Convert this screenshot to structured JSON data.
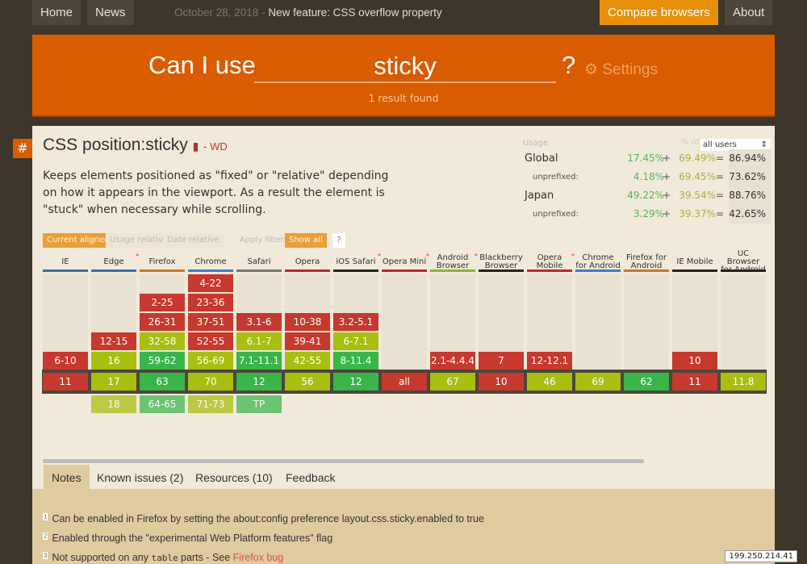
{
  "nav": {
    "home": "Home",
    "news": "News",
    "news_date": "October 28, 2018",
    "news_sep": " - ",
    "news_text": "New feature: CSS overflow property",
    "compare": "Compare browsers",
    "about": "About"
  },
  "search": {
    "prefix": "Can I use",
    "query": "sticky",
    "suffix": "?",
    "settings": "Settings",
    "results": "1 result found"
  },
  "feature": {
    "hash": "#",
    "title": "CSS position:sticky",
    "status": "- WD",
    "description": "Keeps elements positioned as \"fixed\" or \"relative\" depending on how it appears in the viewport. As a result the element is \"stuck\" when necessary while scrolling."
  },
  "usage": {
    "label": "Usage",
    "pct_of": "% of",
    "select": "all users",
    "rows": [
      {
        "name": "Global",
        "a": "17.45%",
        "p": "69.49%",
        "t": "86.94%",
        "sub": false
      },
      {
        "name": "unprefixed:",
        "a": "4.18%",
        "p": "69.45%",
        "t": "73.62%",
        "sub": true
      },
      {
        "name": "Japan",
        "a": "49.22%",
        "p": "39.54%",
        "t": "88.76%",
        "sub": false
      },
      {
        "name": "unprefixed:",
        "a": "3.29%",
        "p": "39.37%",
        "t": "42.65%",
        "sub": true
      }
    ]
  },
  "filters": {
    "current": "Current aligned",
    "usage": "Usage relative",
    "date": "Date relative",
    "apply": "Apply filters",
    "show": "Show all",
    "help": "?"
  },
  "colors": {
    "red": "#c6392e",
    "yellow": "#a8be10",
    "green": "#39b54a",
    "accent": "#d95c00"
  },
  "browsers": [
    {
      "name": "IE",
      "bar": "#3b6ea5",
      "ast": false,
      "past": [
        null,
        null,
        null,
        null,
        [
          "6-10",
          "r"
        ]
      ],
      "cur": [
        "11",
        "r"
      ],
      "fut": null
    },
    {
      "name": "Edge",
      "bar": "#3b6ea5",
      "ast": true,
      "past": [
        null,
        null,
        null,
        [
          "12-15",
          "r"
        ],
        [
          "16",
          "y",
          "6"
        ]
      ],
      "cur": [
        "17",
        "y",
        "6"
      ],
      "fut": [
        "18",
        "y",
        "6"
      ]
    },
    {
      "name": "Firefox",
      "bar": "#c8772a",
      "ast": false,
      "past": [
        null,
        [
          "2-25",
          "r"
        ],
        [
          "26-31",
          "r",
          "1",
          "flag"
        ],
        [
          "32-58",
          "y",
          "3"
        ],
        [
          "59-62",
          "g"
        ]
      ],
      "cur": [
        "63",
        "g"
      ],
      "fut": [
        "64-65",
        "g"
      ]
    },
    {
      "name": "Chrome",
      "bar": "#3b7dc4",
      "ast": false,
      "past": [
        [
          "4-22",
          "r"
        ],
        [
          "23-36",
          "r",
          "2",
          "flag"
        ],
        [
          "37-51",
          "r"
        ],
        [
          "52-55",
          "r",
          "2",
          "flag"
        ],
        [
          "56-69",
          "y",
          "4"
        ]
      ],
      "cur": [
        "70",
        "y",
        "4"
      ],
      "fut": [
        "71-73",
        "y",
        "4"
      ]
    },
    {
      "name": "Safari",
      "bar": "#777",
      "ast": false,
      "past": [
        null,
        null,
        [
          "3.1-6",
          "r"
        ],
        [
          "6.1-7",
          "y",
          "5",
          "minus"
        ],
        [
          "7.1-11.1",
          "g",
          null,
          "minus"
        ]
      ],
      "cur": [
        "12",
        "g",
        null,
        "minus"
      ],
      "fut": [
        "TP",
        "g",
        null,
        "minus"
      ]
    },
    {
      "name": "Opera",
      "bar": "#b52b2b",
      "ast": false,
      "past": [
        null,
        null,
        [
          "10-38",
          "r"
        ],
        [
          "39-41",
          "r",
          "2",
          "flag"
        ],
        [
          "42-55",
          "y",
          "4"
        ]
      ],
      "cur": [
        "56",
        "y",
        "4"
      ],
      "fut": null
    },
    {
      "name": "iOS Safari",
      "bar": "#222",
      "ast": true,
      "past": [
        null,
        null,
        [
          "3.2-5.1",
          "r"
        ],
        [
          "6-7.1",
          "y",
          "5",
          "minus"
        ],
        [
          "8-11.4",
          "g",
          null,
          "minus"
        ]
      ],
      "cur": [
        "12",
        "g",
        null,
        "minus"
      ],
      "fut": null
    },
    {
      "name": "Opera Mini",
      "bar": "#b52b2b",
      "ast": true,
      "past": [
        null,
        null,
        null,
        null,
        null
      ],
      "cur": [
        "all",
        "r"
      ],
      "fut": null
    },
    {
      "name": "Android Browser",
      "bar": "#8ab33a",
      "ast": true,
      "past": [
        null,
        null,
        null,
        null,
        [
          "2.1-4.4.4",
          "r"
        ]
      ],
      "cur": [
        "67",
        "y",
        "4"
      ],
      "fut": null
    },
    {
      "name": "Blackberry Browser",
      "bar": "#222",
      "ast": false,
      "past": [
        null,
        null,
        null,
        null,
        [
          "7",
          "r"
        ]
      ],
      "cur": [
        "10",
        "r"
      ],
      "fut": null
    },
    {
      "name": "Opera Mobile",
      "bar": "#b52b2b",
      "ast": true,
      "past": [
        null,
        null,
        null,
        null,
        [
          "12-12.1",
          "r"
        ]
      ],
      "cur": [
        "46",
        "y",
        "4"
      ],
      "fut": null
    },
    {
      "name": "Chrome for Android",
      "bar": "#3b7dc4",
      "ast": false,
      "past": [
        null,
        null,
        null,
        null,
        null
      ],
      "cur": [
        "69",
        "y",
        "4"
      ],
      "fut": null
    },
    {
      "name": "Firefox for Android",
      "bar": "#c8772a",
      "ast": false,
      "past": [
        null,
        null,
        null,
        null,
        null
      ],
      "cur": [
        "62",
        "g"
      ],
      "fut": null
    },
    {
      "name": "IE Mobile",
      "bar": "#222",
      "ast": false,
      "past": [
        null,
        null,
        null,
        null,
        [
          "10",
          "r"
        ]
      ],
      "cur": [
        "11",
        "r"
      ],
      "fut": null
    },
    {
      "name": "UC Browser for Android",
      "bar": "#222",
      "ast": false,
      "past": [
        null,
        null,
        null,
        null,
        null
      ],
      "cur": [
        "11.8",
        "y",
        "4"
      ],
      "fut": null
    }
  ],
  "tabs": [
    "Notes",
    "Known issues (2)",
    "Resources (10)",
    "Feedback"
  ],
  "notes": [
    {
      "n": "1",
      "text": "Can be enabled in Firefox by setting the about:config preference layout.css.sticky.enabled to true"
    },
    {
      "n": "2",
      "text": "Enabled through the \"experimental Web Platform features\" flag"
    },
    {
      "n": "3",
      "pre": "Not supported on any ",
      "code": "table",
      "post": " parts - See ",
      "link": "Firefox bug"
    }
  ],
  "ip": "199.250.214.41"
}
